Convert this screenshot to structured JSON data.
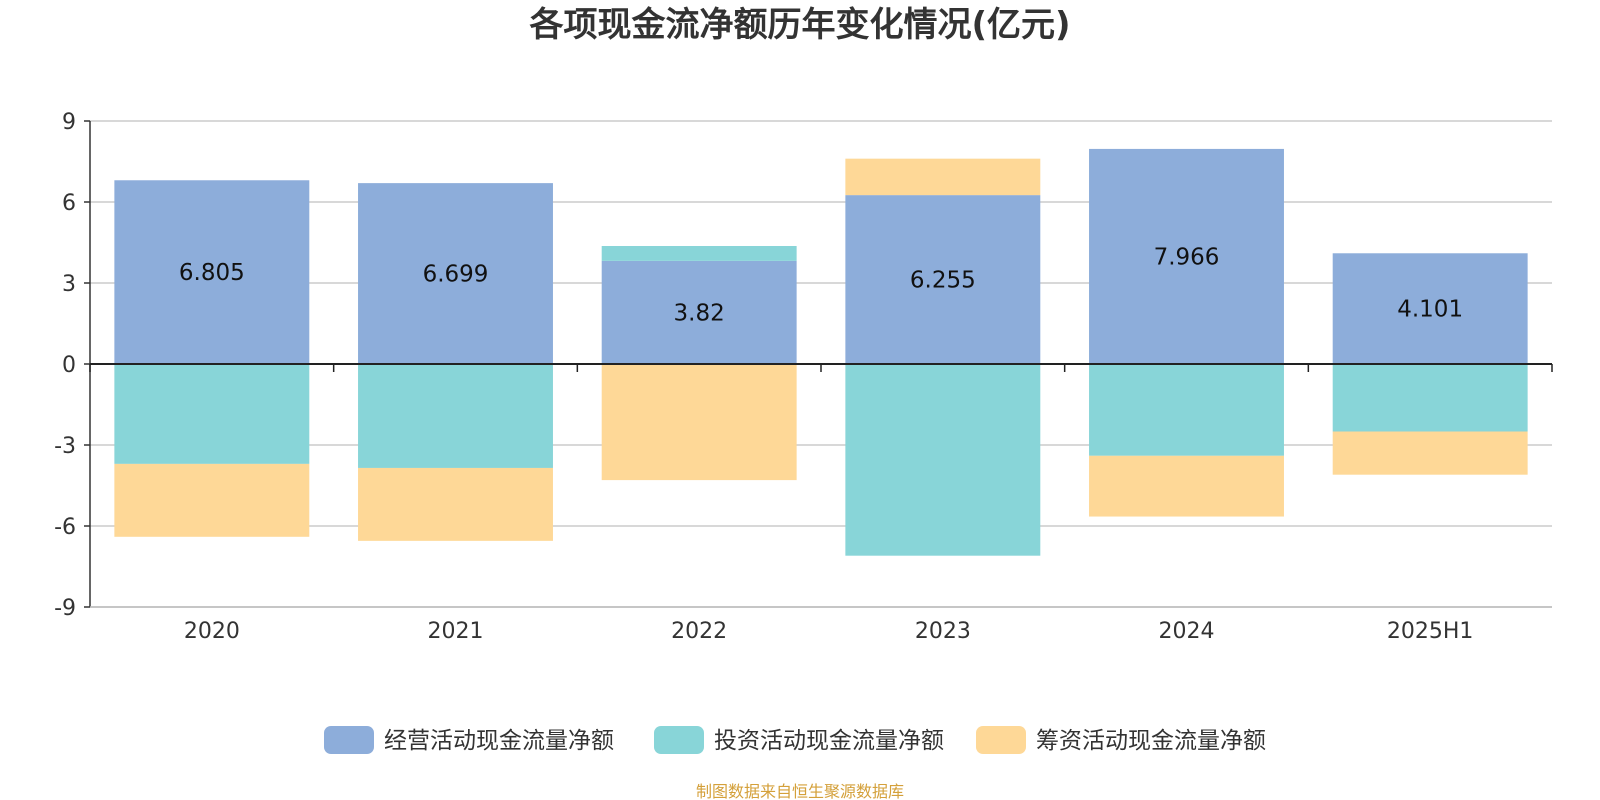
{
  "chart_data": {
    "type": "bar",
    "stacked": true,
    "title": "各项现金流净额历年变化情况(亿元)",
    "categories": [
      "2020",
      "2021",
      "2022",
      "2023",
      "2024",
      "2025H1"
    ],
    "ylim": [
      -9,
      9
    ],
    "yticks": [
      "9",
      "6",
      "3",
      "0",
      "-3",
      "-6",
      "-9"
    ],
    "ytick_values": [
      9,
      6,
      3,
      0,
      -3,
      -6,
      -9
    ],
    "series": [
      {
        "name": "经营活动现金流量净额",
        "color": "#8dadda",
        "values": [
          6.805,
          6.699,
          3.82,
          6.255,
          7.966,
          4.101
        ],
        "labels": [
          "6.805",
          "6.699",
          "3.82",
          "6.255",
          "7.966",
          "4.101"
        ]
      },
      {
        "name": "投资活动现金流量净额",
        "color": "#88d5d8",
        "values": [
          -3.7,
          -3.85,
          0.55,
          -7.1,
          -3.4,
          -2.5
        ]
      },
      {
        "name": "筹资活动现金流量净额",
        "color": "#fed897",
        "values": [
          -2.7,
          -2.7,
          -4.3,
          1.35,
          -2.25,
          -1.6
        ]
      }
    ],
    "legend_position": "bottom-center",
    "grid": true
  },
  "footer": {
    "source": "制图数据来自恒生聚源数据库",
    "color": "#d4a03a"
  }
}
